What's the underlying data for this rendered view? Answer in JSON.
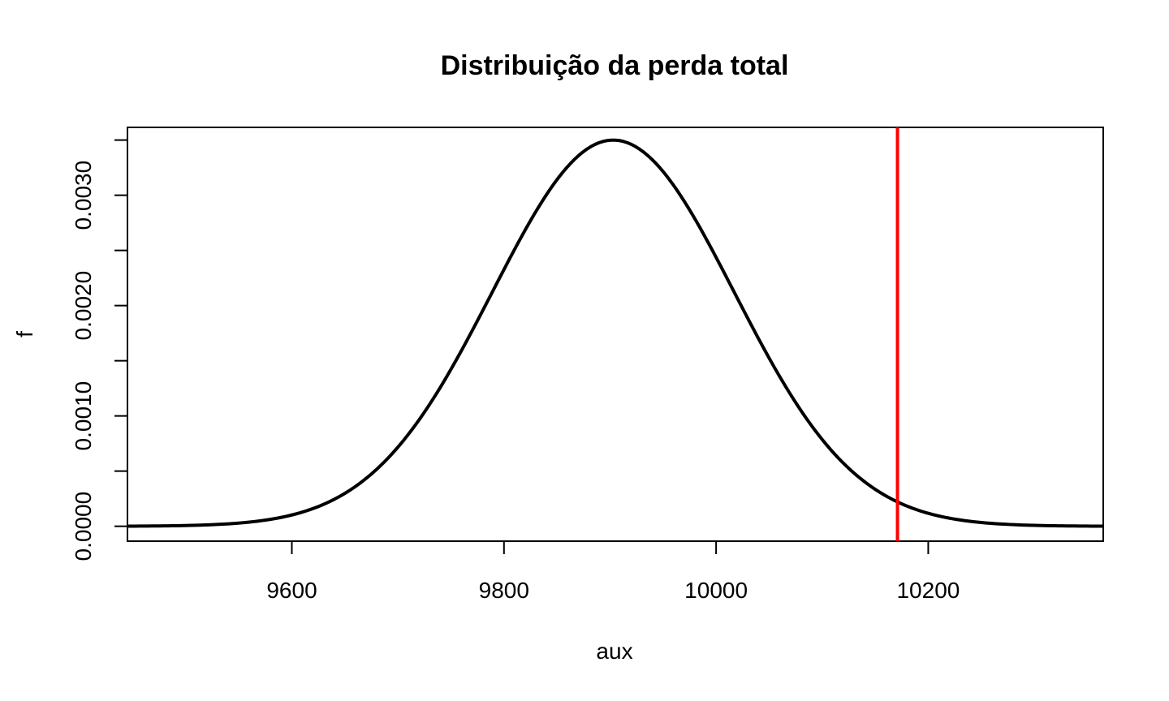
{
  "chart_data": {
    "type": "line",
    "title": "Distribuição da perda total",
    "xlabel": "aux",
    "ylabel": "f",
    "xlim": [
      9445,
      10365
    ],
    "ylim": [
      -0.000135,
      0.003615
    ],
    "x_ticks": [
      9600,
      9800,
      10000,
      10200
    ],
    "x_tick_labels": [
      "9600",
      "9800",
      "10000",
      "10200"
    ],
    "y_ticks": [
      0.0,
      0.0005,
      0.001,
      0.0015,
      0.002,
      0.0025,
      0.003,
      0.0035
    ],
    "y_tick_labels": [
      "0.0000",
      "",
      "0.0010",
      "",
      "0.0020",
      "",
      "0.0030",
      ""
    ],
    "grid": false,
    "curve": {
      "x_start": 9445,
      "x_end": 10365,
      "mean": 9903,
      "sd": 114,
      "peak": 0.0035,
      "color": "#000000"
    },
    "vline": {
      "x": 10171,
      "color": "#ff0000"
    }
  }
}
